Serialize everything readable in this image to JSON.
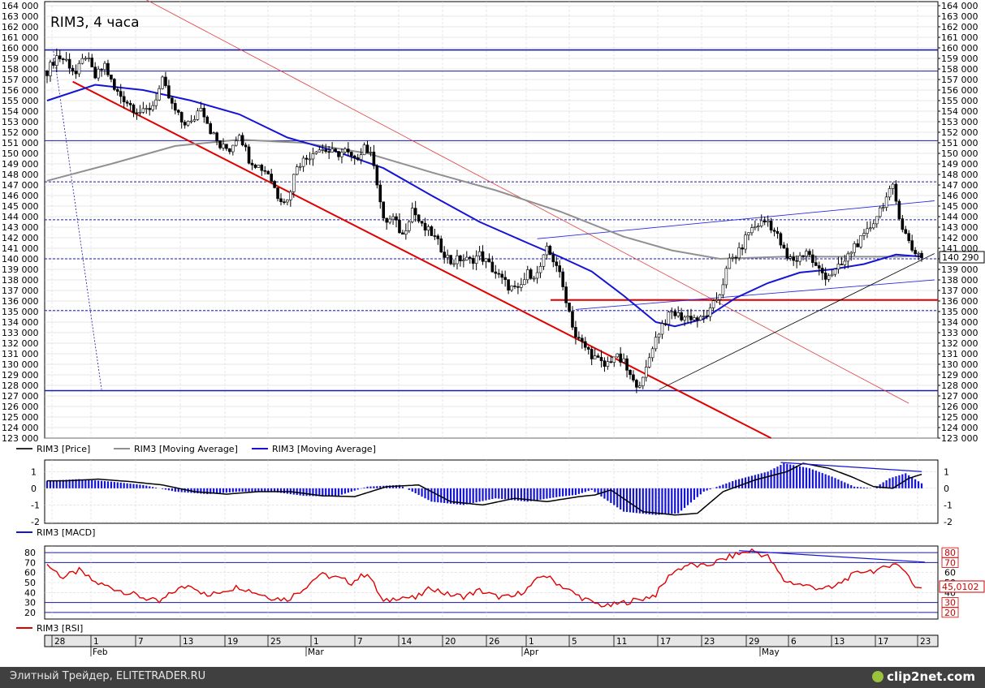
{
  "chart_data": {
    "type": "candlestick",
    "title": "RIM3, 4 часа",
    "price_axis": {
      "ylim": [
        123000,
        164000
      ],
      "tick_step": 1000,
      "current_price_label": "140 290"
    },
    "legend": [
      "RIM3 [Price]",
      "RIM3 [Moving Average]",
      "RIM3 [Moving Average]"
    ],
    "legend_colors": [
      "#303030",
      "#909090",
      "#1414d6"
    ],
    "x_axis": {
      "day_labels": [
        "28",
        "1",
        "7",
        "13",
        "19",
        "25",
        "1",
        "7",
        "14",
        "20",
        "26",
        "1",
        "5",
        "11",
        "17",
        "23",
        "29",
        "6",
        "13",
        "17",
        "23"
      ],
      "month_labels": [
        "Feb",
        "Mar",
        "Apr",
        "May"
      ]
    },
    "price_series": {
      "name": "RIM3",
      "description_points": [
        [
          0,
          157800
        ],
        [
          3,
          159200
        ],
        [
          6,
          158800
        ],
        [
          9,
          157500
        ],
        [
          12,
          159300
        ],
        [
          15,
          157200
        ],
        [
          18,
          158400
        ],
        [
          21,
          156000
        ],
        [
          24,
          155200
        ],
        [
          27,
          154300
        ],
        [
          30,
          153800
        ],
        [
          33,
          154600
        ],
        [
          36,
          156800
        ],
        [
          39,
          154500
        ],
        [
          42,
          153000
        ],
        [
          45,
          152800
        ],
        [
          48,
          154600
        ],
        [
          51,
          152200
        ],
        [
          54,
          150600
        ],
        [
          57,
          150400
        ],
        [
          60,
          152000
        ],
        [
          63,
          149500
        ],
        [
          66,
          148800
        ],
        [
          69,
          148200
        ],
        [
          72,
          146000
        ],
        [
          75,
          145500
        ],
        [
          78,
          149000
        ],
        [
          81,
          149500
        ],
        [
          84,
          150500
        ],
        [
          87,
          150300
        ],
        [
          90,
          149900
        ],
        [
          93,
          150200
        ],
        [
          96,
          149200
        ],
        [
          99,
          150800
        ],
        [
          102,
          149200
        ],
        [
          105,
          143500
        ],
        [
          108,
          143800
        ],
        [
          111,
          142200
        ],
        [
          114,
          144800
        ],
        [
          117,
          143000
        ],
        [
          120,
          142400
        ],
        [
          123,
          141000
        ],
        [
          126,
          139700
        ],
        [
          129,
          140000
        ],
        [
          132,
          139800
        ],
        [
          135,
          140400
        ],
        [
          138,
          139400
        ],
        [
          141,
          138300
        ],
        [
          144,
          137400
        ],
        [
          147,
          136900
        ],
        [
          150,
          138600
        ],
        [
          153,
          138500
        ],
        [
          156,
          140800
        ],
        [
          159,
          139500
        ],
        [
          162,
          136200
        ],
        [
          165,
          132600
        ],
        [
          168,
          131600
        ],
        [
          171,
          130600
        ],
        [
          174,
          129800
        ],
        [
          177,
          130800
        ],
        [
          180,
          130100
        ],
        [
          183,
          128200
        ],
        [
          186,
          128400
        ],
        [
          189,
          131800
        ],
        [
          192,
          133800
        ],
        [
          195,
          134900
        ],
        [
          198,
          134500
        ],
        [
          201,
          134500
        ],
        [
          204,
          134200
        ],
        [
          207,
          135000
        ],
        [
          210,
          136800
        ],
        [
          213,
          139800
        ],
        [
          216,
          140600
        ],
        [
          219,
          142600
        ],
        [
          222,
          143300
        ],
        [
          225,
          143600
        ],
        [
          228,
          142100
        ],
        [
          231,
          140000
        ],
        [
          234,
          139900
        ],
        [
          237,
          140800
        ],
        [
          240,
          139200
        ],
        [
          243,
          138400
        ],
        [
          246,
          138800
        ],
        [
          249,
          139700
        ],
        [
          252,
          141300
        ],
        [
          255,
          142000
        ],
        [
          258,
          143600
        ],
        [
          261,
          145300
        ],
        [
          264,
          146700
        ],
        [
          267,
          143000
        ],
        [
          270,
          140900
        ],
        [
          273,
          140290
        ]
      ]
    },
    "moving_average_gray_points": [
      [
        0,
        147400
      ],
      [
        20,
        149000
      ],
      [
        40,
        150700
      ],
      [
        60,
        151300
      ],
      [
        80,
        151000
      ],
      [
        100,
        150000
      ],
      [
        120,
        148200
      ],
      [
        140,
        146500
      ],
      [
        160,
        144500
      ],
      [
        180,
        142100
      ],
      [
        195,
        140800
      ],
      [
        210,
        140000
      ],
      [
        230,
        140200
      ],
      [
        250,
        140200
      ],
      [
        265,
        140200
      ],
      [
        273,
        140300
      ]
    ],
    "moving_average_blue_points": [
      [
        0,
        155000
      ],
      [
        15,
        156500
      ],
      [
        30,
        156000
      ],
      [
        45,
        155000
      ],
      [
        60,
        153700
      ],
      [
        75,
        151500
      ],
      [
        90,
        150200
      ],
      [
        105,
        148600
      ],
      [
        120,
        146000
      ],
      [
        135,
        143500
      ],
      [
        150,
        141500
      ],
      [
        160,
        140200
      ],
      [
        170,
        138800
      ],
      [
        180,
        136500
      ],
      [
        190,
        134000
      ],
      [
        196,
        133600
      ],
      [
        205,
        134300
      ],
      [
        215,
        136300
      ],
      [
        225,
        137700
      ],
      [
        235,
        138700
      ],
      [
        245,
        139000
      ],
      [
        255,
        139500
      ],
      [
        265,
        140400
      ],
      [
        273,
        140200
      ]
    ],
    "horizontal_levels": [
      159800,
      157800,
      151200,
      147300,
      143700,
      140000,
      135100,
      127500
    ],
    "red_support_level": 136100,
    "macd": {
      "name": "RIM3 [MACD]",
      "ylim": [
        -2,
        1.5
      ],
      "ticks": [
        "1",
        "0",
        "-1",
        "-2"
      ],
      "points": [
        [
          0,
          0.45
        ],
        [
          10,
          0.55
        ],
        [
          20,
          0.4
        ],
        [
          30,
          0.2
        ],
        [
          40,
          -0.2
        ],
        [
          50,
          -0.35
        ],
        [
          60,
          -0.2
        ],
        [
          70,
          -0.2
        ],
        [
          80,
          -0.45
        ],
        [
          90,
          -0.5
        ],
        [
          100,
          0.1
        ],
        [
          110,
          0.2
        ],
        [
          120,
          -0.8
        ],
        [
          130,
          -1.0
        ],
        [
          140,
          -0.6
        ],
        [
          150,
          -0.8
        ],
        [
          160,
          -0.5
        ],
        [
          165,
          -0.4
        ],
        [
          170,
          -0.1
        ],
        [
          180,
          -1.4
        ],
        [
          190,
          -1.6
        ],
        [
          197,
          -1.5
        ],
        [
          205,
          -0.2
        ],
        [
          215,
          0.5
        ],
        [
          225,
          1.0
        ],
        [
          230,
          1.5
        ],
        [
          238,
          1.2
        ],
        [
          245,
          0.7
        ],
        [
          252,
          0.1
        ],
        [
          258,
          0.0
        ],
        [
          263,
          0.6
        ],
        [
          268,
          0.9
        ],
        [
          273,
          0.3
        ]
      ]
    },
    "rsi": {
      "name": "RIM3 [RSI]",
      "ylim": [
        15,
        85
      ],
      "ticks": [
        "80",
        "70",
        "60",
        "50",
        "40",
        "30",
        "20"
      ],
      "levels": [
        80,
        70,
        30,
        20
      ],
      "current_label": "45,0102",
      "points": [
        [
          0,
          68
        ],
        [
          5,
          55
        ],
        [
          10,
          62
        ],
        [
          15,
          50
        ],
        [
          20,
          45
        ],
        [
          25,
          40
        ],
        [
          30,
          35
        ],
        [
          35,
          30
        ],
        [
          40,
          42
        ],
        [
          45,
          48
        ],
        [
          50,
          36
        ],
        [
          55,
          42
        ],
        [
          60,
          46
        ],
        [
          65,
          40
        ],
        [
          70,
          35
        ],
        [
          75,
          33
        ],
        [
          80,
          44
        ],
        [
          85,
          58
        ],
        [
          90,
          55
        ],
        [
          95,
          50
        ],
        [
          100,
          60
        ],
        [
          105,
          30
        ],
        [
          110,
          36
        ],
        [
          115,
          34
        ],
        [
          120,
          45
        ],
        [
          125,
          38
        ],
        [
          130,
          36
        ],
        [
          135,
          42
        ],
        [
          140,
          36
        ],
        [
          145,
          35
        ],
        [
          150,
          44
        ],
        [
          155,
          58
        ],
        [
          160,
          48
        ],
        [
          165,
          38
        ],
        [
          170,
          30
        ],
        [
          175,
          26
        ],
        [
          180,
          30
        ],
        [
          185,
          33
        ],
        [
          190,
          38
        ],
        [
          195,
          60
        ],
        [
          200,
          68
        ],
        [
          205,
          66
        ],
        [
          210,
          72
        ],
        [
          215,
          78
        ],
        [
          220,
          82
        ],
        [
          225,
          76
        ],
        [
          230,
          52
        ],
        [
          235,
          48
        ],
        [
          240,
          45
        ],
        [
          245,
          44
        ],
        [
          250,
          55
        ],
        [
          255,
          62
        ],
        [
          260,
          62
        ],
        [
          264,
          70
        ],
        [
          268,
          62
        ],
        [
          271,
          45
        ],
        [
          273,
          45
        ]
      ]
    }
  },
  "footer": {
    "left_text": "Элитный Трейдер, ELITETRADER.RU",
    "logo_text": "clip2net.com"
  }
}
